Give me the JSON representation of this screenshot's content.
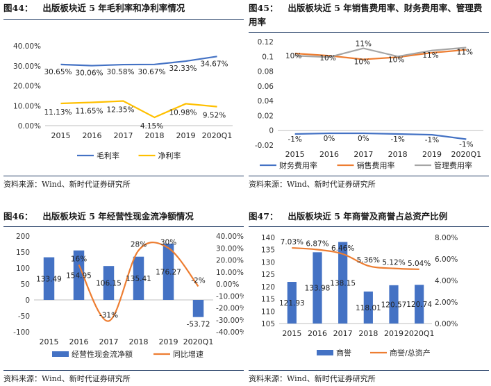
{
  "panels": [
    {
      "title_num": "图44：",
      "title_text": "出版板块近 5 年毛利率和净利率情况",
      "source": "资料来源：Wind、新时代证券研究所"
    },
    {
      "title_num": "图45：",
      "title_text": "出版板块近 5 年销售费用率、财务费用率、管理费用率",
      "source": "资料来源：Wind、新时代证券研究所"
    },
    {
      "title_num": "图46：",
      "title_text": "出版板块近 5 年经营性现金流净额情况",
      "source": "资料来源：Wind、新时代证券研究所"
    },
    {
      "title_num": "图47：",
      "title_text": "出版板块近 5 年商誉及商誉占总资产比例",
      "source": "资料来源：Wind、新时代证券研究所"
    }
  ],
  "chart_data": [
    {
      "type": "line",
      "categories": [
        "2015",
        "2016",
        "2017",
        "2018",
        "2019",
        "2020Q1"
      ],
      "ylim": [
        0,
        40
      ],
      "yticks": [
        "0.00%",
        "10.00%",
        "20.00%",
        "30.00%",
        "40.00%"
      ],
      "series": [
        {
          "name": "毛利率",
          "color": "#4472c4",
          "values": [
            30.65,
            30.06,
            30.58,
            30.67,
            32.33,
            34.67
          ],
          "labels": [
            "30.65%",
            "30.06%",
            "30.58%",
            "30.67%",
            "32.33%",
            "34.67%"
          ]
        },
        {
          "name": "净利率",
          "color": "#ffc000",
          "values": [
            11.13,
            11.65,
            12.35,
            4.15,
            10.98,
            9.52
          ],
          "labels": [
            "11.13%",
            "11.65%",
            "12.35%",
            "4.15%",
            "10.98%",
            "9.52%"
          ]
        }
      ]
    },
    {
      "type": "line",
      "categories": [
        "2015",
        "2016",
        "2017",
        "2018",
        "2019",
        "2020Q1"
      ],
      "ylim": [
        -0.02,
        0.12
      ],
      "yticks": [
        "-0.02",
        "0",
        "0.02",
        "0.04",
        "0.06",
        "0.08",
        "0.1",
        "0.12"
      ],
      "series": [
        {
          "name": "财务费用率",
          "color": "#4472c4",
          "values": [
            -0.005,
            -0.004,
            -0.004,
            -0.005,
            -0.006,
            -0.012
          ],
          "labels": [
            "-1%",
            "0%",
            "0%",
            "-1%",
            "-1%",
            "-1%"
          ]
        },
        {
          "name": "销售费用率",
          "color": "#ed7d31",
          "values": [
            0.104,
            0.101,
            0.096,
            0.099,
            0.105,
            0.109
          ],
          "labels": [
            "10%",
            "10%",
            "10%",
            "10%",
            "11%",
            "11%"
          ]
        },
        {
          "name": "管理费用率",
          "color": "#a5a5a5",
          "values": [
            0.101,
            0.099,
            0.111,
            0.1,
            0.108,
            0.112
          ],
          "labels": [
            "",
            "",
            "11%",
            "",
            "",
            ""
          ]
        }
      ]
    },
    {
      "type": "bar",
      "categories": [
        "2015",
        "2016",
        "2017",
        "2018",
        "2019",
        "2020Q1"
      ],
      "ylim": [
        -100,
        200
      ],
      "yticks": [
        "-100",
        "-50",
        "0",
        "50",
        "100",
        "150",
        "200"
      ],
      "y2lim": [
        -40,
        40
      ],
      "y2ticks": [
        "-40.00%",
        "-30.00%",
        "-20.00%",
        "-10.00%",
        "0.00%",
        "10.00%",
        "20.00%",
        "30.00%",
        "40.00%"
      ],
      "series": [
        {
          "name": "经营性现金流净额",
          "color": "#4472c4",
          "values": [
            133.49,
            154.95,
            106.15,
            135.41,
            176.27,
            -53.72
          ],
          "labels": [
            "133.49",
            "154.95",
            "106.15",
            "135.41",
            "176.27",
            "-53.72"
          ]
        },
        {
          "name": "同比增速",
          "color": "#ed7d31",
          "values": [
            null,
            16,
            -31,
            28,
            30,
            -2
          ],
          "labels": [
            "",
            "16%",
            "-31%",
            "28%",
            "30%",
            "-2%"
          ]
        }
      ]
    },
    {
      "type": "bar",
      "categories": [
        "2015",
        "2016",
        "2017",
        "2018",
        "2019",
        "2020Q1"
      ],
      "ylim": [
        105,
        140
      ],
      "yticks": [
        "105",
        "110",
        "115",
        "120",
        "125",
        "130",
        "135",
        "140"
      ],
      "y2lim": [
        0,
        8
      ],
      "y2ticks": [
        "0.00%",
        "2.00%",
        "4.00%",
        "6.00%",
        "8.00%"
      ],
      "series": [
        {
          "name": "商誉",
          "color": "#4472c4",
          "values": [
            121.93,
            133.98,
            138.15,
            118.01,
            120.57,
            120.74
          ],
          "labels": [
            "121.93",
            "133.98",
            "138.15",
            "118.01",
            "120.57",
            "120.74"
          ]
        },
        {
          "name": "商誉/总资产",
          "color": "#ed7d31",
          "values": [
            7.03,
            6.87,
            6.46,
            5.36,
            5.12,
            5.04
          ],
          "labels": [
            "7.03%",
            "6.87%",
            "6.46%",
            "5.36%",
            "5.12%",
            "5.04%"
          ]
        }
      ]
    }
  ]
}
